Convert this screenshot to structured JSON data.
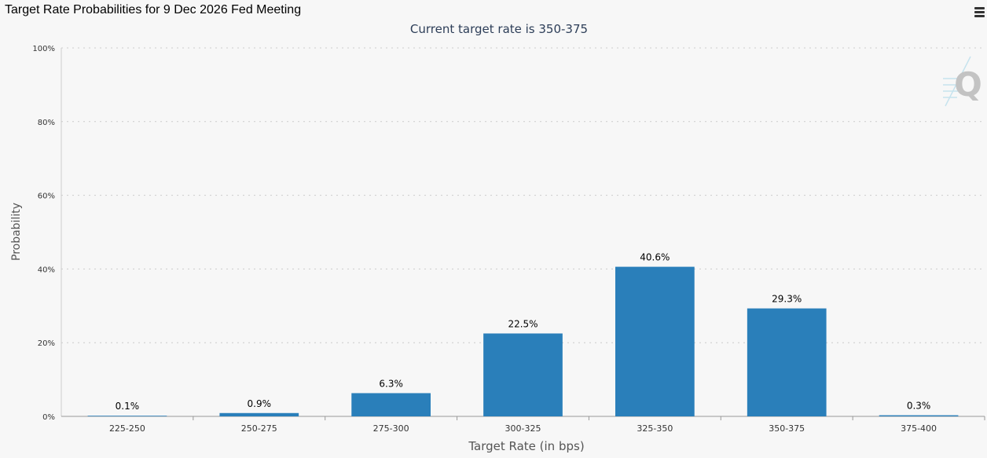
{
  "page_title": "Target Rate Probabilities for 9 Dec 2026 Fed Meeting",
  "menu_icon": "hamburger-menu-icon",
  "watermark_icon": "q-logo-icon",
  "colors": {
    "bar": "#2a7fba",
    "subtitle": "#2d3e58",
    "grid": "#cccccc",
    "axis_text": "#555555"
  },
  "chart_data": {
    "type": "bar",
    "subtitle": "Current target rate is 350-375",
    "xlabel": "Target Rate (in bps)",
    "ylabel": "Probability",
    "categories": [
      "225-250",
      "250-275",
      "275-300",
      "300-325",
      "325-350",
      "350-375",
      "375-400"
    ],
    "values": [
      0.1,
      0.9,
      6.3,
      22.5,
      40.6,
      29.3,
      0.3
    ],
    "data_labels": [
      "0.1%",
      "0.9%",
      "6.3%",
      "22.5%",
      "40.6%",
      "29.3%",
      "0.3%"
    ],
    "ylim": [
      0,
      100
    ],
    "yticks": [
      0,
      20,
      40,
      60,
      80,
      100
    ],
    "ytick_labels": [
      "0%",
      "20%",
      "40%",
      "60%",
      "80%",
      "100%"
    ],
    "grid": true,
    "legend": false
  }
}
